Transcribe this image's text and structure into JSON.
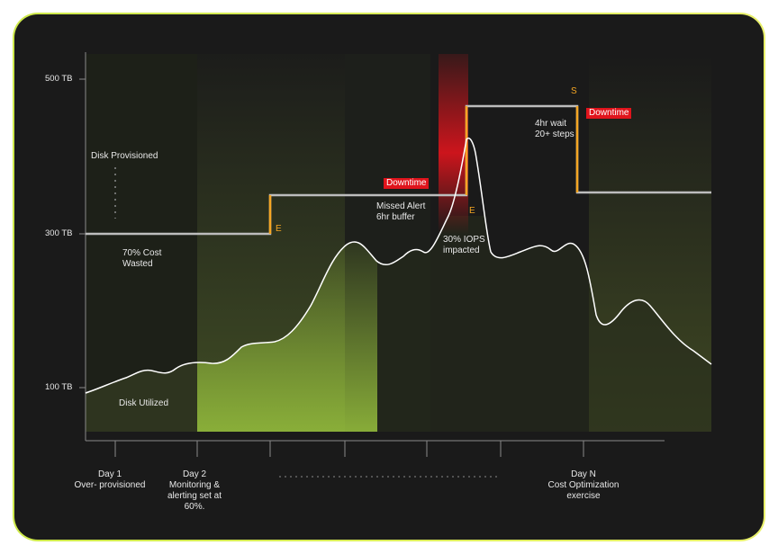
{
  "y_axis": {
    "ticks": [
      "500 TB",
      "300 TB",
      "100 TB"
    ]
  },
  "x_axis": {
    "day1": "Day 1\nOver- provisioned",
    "day2": "Day 2\nMonitoring &\nalerting set at\n60%.",
    "dayn": "Day N\nCost Optimization\nexercise"
  },
  "annotations": {
    "disk_provisioned": "Disk Provisioned",
    "cost_wasted": "70% Cost\nWasted",
    "disk_utilized": "Disk Utilized",
    "missed_alert": "Missed Alert\n6hr buffer",
    "iops": "30% IOPS\nimpacted",
    "wait": "4hr wait\n20+ steps",
    "downtime_1": "Downtime",
    "downtime_2": "Downtime",
    "marker_e1": "E",
    "marker_e2": "E",
    "marker_s": "S"
  },
  "colors": {
    "background": "#1a1a1a",
    "frame_accent": "#d4ec4e",
    "provisioned_line": "#bdbdbd",
    "utilized_line": "#ffffff",
    "marker": "#f5a623",
    "downtime": "#e0141c",
    "fill_green": "#8db33a"
  }
}
